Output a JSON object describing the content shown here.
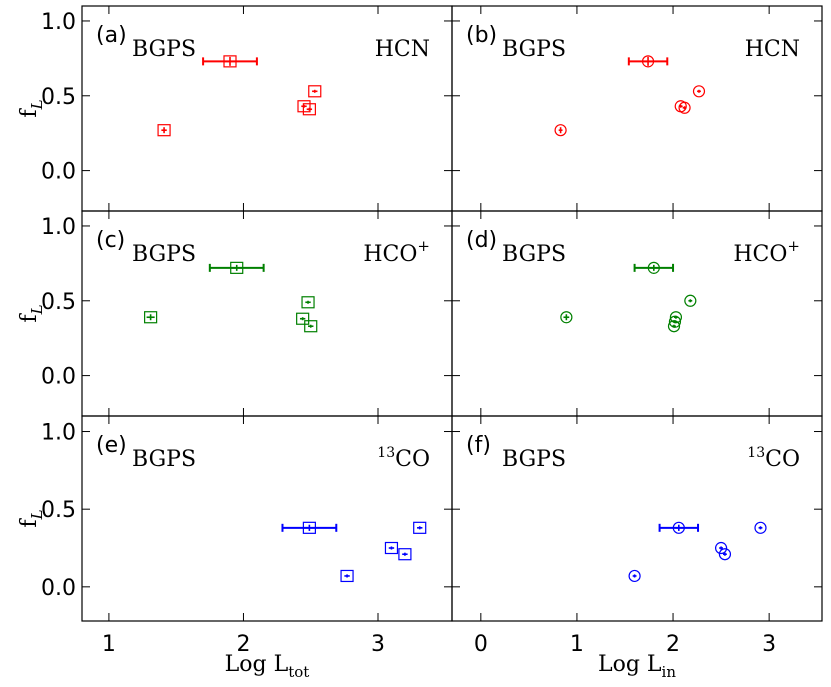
{
  "figure": {
    "ylabel": "f",
    "ylabel_sub": "L",
    "xlabels": [
      {
        "main": "Log L",
        "sub": "tot"
      },
      {
        "main": "Log L",
        "sub": "in"
      }
    ],
    "colors": {
      "HCN": "#ff0000",
      "HCO+": "#008000",
      "13CO": "#0000ff"
    }
  },
  "chart_data": [
    {
      "type": "scatter",
      "panel": "(a)",
      "survey": "BGPS",
      "line": "HCN",
      "line_sup": "",
      "color": "#ff0000",
      "marker": "square",
      "xlabel": "Log L_tot",
      "ylabel": "f_L",
      "xlim": [
        0.8,
        3.55
      ],
      "ylim": [
        -0.27,
        1.1
      ],
      "xticks": [
        1,
        2,
        3
      ],
      "yticks": [
        0.0,
        0.5,
        1.0
      ],
      "points": [
        {
          "x": 1.41,
          "y": 0.27,
          "xerr": 0.02,
          "yerr": 0.02,
          "xerr_major": 0.0
        },
        {
          "x": 1.9,
          "y": 0.73,
          "xerr": 0.04,
          "yerr": 0.03,
          "xerr_major": 0.2
        },
        {
          "x": 2.45,
          "y": 0.43,
          "xerr": 0.02,
          "yerr": 0.01,
          "xerr_major": 0.0
        },
        {
          "x": 2.49,
          "y": 0.41,
          "xerr": 0.02,
          "yerr": 0.01,
          "xerr_major": 0.0
        },
        {
          "x": 2.53,
          "y": 0.53,
          "xerr": 0.02,
          "yerr": 0.01,
          "xerr_major": 0.0
        }
      ]
    },
    {
      "type": "scatter",
      "panel": "(b)",
      "survey": "BGPS",
      "line": "HCN",
      "line_sup": "",
      "color": "#ff0000",
      "marker": "circle",
      "xlabel": "Log L_in",
      "ylabel": "f_L",
      "xlim": [
        -0.3,
        3.55
      ],
      "ylim": [
        -0.27,
        1.1
      ],
      "xticks": [
        0,
        1,
        2,
        3
      ],
      "yticks": [
        0.0,
        0.5,
        1.0
      ],
      "points": [
        {
          "x": 0.83,
          "y": 0.27,
          "xerr": 0.02,
          "yerr": 0.02,
          "xerr_major": 0.0
        },
        {
          "x": 1.74,
          "y": 0.73,
          "xerr": 0.04,
          "yerr": 0.03,
          "xerr_major": 0.2
        },
        {
          "x": 2.08,
          "y": 0.43,
          "xerr": 0.02,
          "yerr": 0.01,
          "xerr_major": 0.0
        },
        {
          "x": 2.12,
          "y": 0.42,
          "xerr": 0.02,
          "yerr": 0.01,
          "xerr_major": 0.0
        },
        {
          "x": 2.27,
          "y": 0.53,
          "xerr": 0.02,
          "yerr": 0.01,
          "xerr_major": 0.0
        }
      ]
    },
    {
      "type": "scatter",
      "panel": "(c)",
      "survey": "BGPS",
      "line": "HCO",
      "line_sup": "+",
      "color": "#008000",
      "marker": "square",
      "xlabel": "Log L_tot",
      "ylabel": "f_L",
      "xlim": [
        0.8,
        3.55
      ],
      "ylim": [
        -0.27,
        1.1
      ],
      "xticks": [
        1,
        2,
        3
      ],
      "yticks": [
        0.0,
        0.5,
        1.0
      ],
      "points": [
        {
          "x": 1.31,
          "y": 0.39,
          "xerr": 0.03,
          "yerr": 0.02,
          "xerr_major": 0.0
        },
        {
          "x": 1.95,
          "y": 0.72,
          "xerr": 0.04,
          "yerr": 0.02,
          "xerr_major": 0.2
        },
        {
          "x": 2.44,
          "y": 0.38,
          "xerr": 0.02,
          "yerr": 0.01,
          "xerr_major": 0.0
        },
        {
          "x": 2.48,
          "y": 0.49,
          "xerr": 0.02,
          "yerr": 0.01,
          "xerr_major": 0.0
        },
        {
          "x": 2.5,
          "y": 0.33,
          "xerr": 0.02,
          "yerr": 0.01,
          "xerr_major": 0.0
        }
      ]
    },
    {
      "type": "scatter",
      "panel": "(d)",
      "survey": "BGPS",
      "line": "HCO",
      "line_sup": "+",
      "color": "#008000",
      "marker": "circle",
      "xlabel": "Log L_in",
      "ylabel": "f_L",
      "xlim": [
        -0.3,
        3.55
      ],
      "ylim": [
        -0.27,
        1.1
      ],
      "xticks": [
        0,
        1,
        2,
        3
      ],
      "yticks": [
        0.0,
        0.5,
        1.0
      ],
      "points": [
        {
          "x": 0.89,
          "y": 0.39,
          "xerr": 0.03,
          "yerr": 0.02,
          "xerr_major": 0.0
        },
        {
          "x": 1.8,
          "y": 0.72,
          "xerr": 0.04,
          "yerr": 0.02,
          "xerr_major": 0.2
        },
        {
          "x": 2.01,
          "y": 0.33,
          "xerr": 0.02,
          "yerr": 0.01,
          "xerr_major": 0.0
        },
        {
          "x": 2.02,
          "y": 0.36,
          "xerr": 0.02,
          "yerr": 0.01,
          "xerr_major": 0.0
        },
        {
          "x": 2.03,
          "y": 0.39,
          "xerr": 0.02,
          "yerr": 0.01,
          "xerr_major": 0.0
        },
        {
          "x": 2.18,
          "y": 0.5,
          "xerr": 0.02,
          "yerr": 0.01,
          "xerr_major": 0.0
        }
      ]
    },
    {
      "type": "scatter",
      "panel": "(e)",
      "survey": "BGPS",
      "line": "CO",
      "line_pre": "13",
      "line_sup": "",
      "color": "#0000ff",
      "marker": "square",
      "xlabel": "Log L_tot",
      "ylabel": "f_L",
      "xlim": [
        0.8,
        3.55
      ],
      "ylim": [
        -0.22,
        1.1
      ],
      "xticks": [
        1,
        2,
        3
      ],
      "yticks": [
        0.0,
        0.5,
        1.0
      ],
      "points": [
        {
          "x": 2.49,
          "y": 0.38,
          "xerr": 0.04,
          "yerr": 0.02,
          "xerr_major": 0.2
        },
        {
          "x": 2.77,
          "y": 0.07,
          "xerr": 0.02,
          "yerr": 0.01,
          "xerr_major": 0.0
        },
        {
          "x": 3.1,
          "y": 0.25,
          "xerr": 0.02,
          "yerr": 0.01,
          "xerr_major": 0.0
        },
        {
          "x": 3.2,
          "y": 0.21,
          "xerr": 0.02,
          "yerr": 0.01,
          "xerr_major": 0.0
        },
        {
          "x": 3.31,
          "y": 0.38,
          "xerr": 0.02,
          "yerr": 0.01,
          "xerr_major": 0.0
        }
      ]
    },
    {
      "type": "scatter",
      "panel": "(f)",
      "survey": "BGPS",
      "line": "CO",
      "line_pre": "13",
      "line_sup": "",
      "color": "#0000ff",
      "marker": "circle",
      "xlabel": "Log L_in",
      "ylabel": "f_L",
      "xlim": [
        -0.3,
        3.55
      ],
      "ylim": [
        -0.22,
        1.1
      ],
      "xticks": [
        0,
        1,
        2,
        3
      ],
      "yticks": [
        0.0,
        0.5,
        1.0
      ],
      "points": [
        {
          "x": 1.6,
          "y": 0.07,
          "xerr": 0.02,
          "yerr": 0.01,
          "xerr_major": 0.0
        },
        {
          "x": 2.06,
          "y": 0.38,
          "xerr": 0.04,
          "yerr": 0.02,
          "xerr_major": 0.2
        },
        {
          "x": 2.5,
          "y": 0.25,
          "xerr": 0.02,
          "yerr": 0.01,
          "xerr_major": 0.0
        },
        {
          "x": 2.54,
          "y": 0.21,
          "xerr": 0.02,
          "yerr": 0.01,
          "xerr_major": 0.0
        },
        {
          "x": 2.91,
          "y": 0.38,
          "xerr": 0.02,
          "yerr": 0.01,
          "xerr_major": 0.0
        }
      ]
    }
  ]
}
